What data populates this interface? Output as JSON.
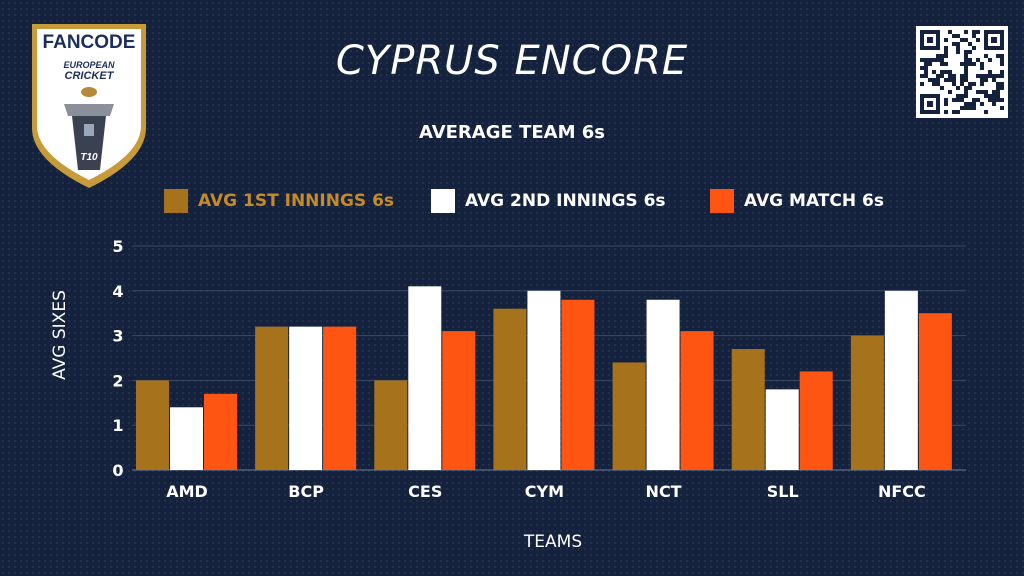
{
  "logo": {
    "brand": "FANCODE",
    "line1": "EUROPEAN",
    "line2": "CRICKET",
    "badge": "T10"
  },
  "qr": {
    "icon": "qr-code-icon"
  },
  "colors": {
    "background": "#14223d",
    "series1": "#a6721c",
    "series2": "#ffffff",
    "series3": "#ff5512",
    "grid": "#3a4a66"
  },
  "chart_data": {
    "type": "bar",
    "title": "CYPRUS ENCORE",
    "subtitle": "AVERAGE TEAM 6s",
    "xlabel": "TEAMS",
    "ylabel": "AVG SIXES",
    "ylim": [
      0,
      5
    ],
    "yticks": [
      "0",
      "1",
      "2",
      "3",
      "4",
      "5"
    ],
    "grid": true,
    "legend_position": "top",
    "categories": [
      "AMD",
      "BCP",
      "CES",
      "CYM",
      "NCT",
      "SLL",
      "NFCC"
    ],
    "series": [
      {
        "name": "AVG 1ST INNINGS 6s",
        "color": "#a6721c",
        "values": [
          2.0,
          3.2,
          2.0,
          3.6,
          2.4,
          2.7,
          3.0
        ]
      },
      {
        "name": "AVG 2ND INNINGS 6s",
        "color": "#ffffff",
        "values": [
          1.4,
          3.2,
          4.1,
          4.0,
          3.8,
          1.8,
          4.0
        ]
      },
      {
        "name": "AVG MATCH 6s",
        "color": "#ff5512",
        "values": [
          1.7,
          3.2,
          3.1,
          3.8,
          3.1,
          2.2,
          3.5
        ]
      }
    ]
  }
}
